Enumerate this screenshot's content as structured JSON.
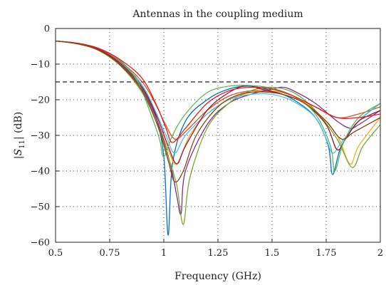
{
  "chart_data": {
    "type": "line",
    "title": "Antennas in the coupling medium",
    "xlabel": "Frequency (GHz)",
    "ylabel_parts": [
      "|",
      "S",
      "11",
      "| (dB)"
    ],
    "xlim": [
      0.5,
      2.0
    ],
    "ylim": [
      -60,
      0
    ],
    "xticks": [
      0.5,
      0.75,
      1.0,
      1.25,
      1.5,
      1.75,
      2.0
    ],
    "xtick_labels": [
      "0.5",
      "0.75",
      "1",
      "1.25",
      "1.5",
      "1.75",
      "2"
    ],
    "yticks": [
      0,
      -10,
      -20,
      -30,
      -40,
      -50,
      -60
    ],
    "ytick_labels": [
      "0",
      "−10",
      "−20",
      "−30",
      "−40",
      "−50",
      "−60"
    ],
    "grid": true,
    "reference_line": {
      "y": -15,
      "style": "dashed",
      "color": "#222222"
    },
    "series": [
      {
        "color": "#0072bd",
        "points": [
          [
            0.5,
            -3.5
          ],
          [
            0.6,
            -4.2
          ],
          [
            0.7,
            -5.8
          ],
          [
            0.8,
            -9.5
          ],
          [
            0.9,
            -16
          ],
          [
            0.96,
            -24
          ],
          [
            1.0,
            -36
          ],
          [
            1.02,
            -58
          ],
          [
            1.04,
            -38
          ],
          [
            1.1,
            -26
          ],
          [
            1.2,
            -20
          ],
          [
            1.3,
            -17
          ],
          [
            1.4,
            -16.2
          ],
          [
            1.5,
            -17.5
          ],
          [
            1.6,
            -20
          ],
          [
            1.7,
            -25
          ],
          [
            1.76,
            -33
          ],
          [
            1.78,
            -41
          ],
          [
            1.82,
            -33
          ],
          [
            1.9,
            -26
          ],
          [
            2.0,
            -21
          ]
        ]
      },
      {
        "color": "#d95319",
        "points": [
          [
            0.5,
            -3.5
          ],
          [
            0.6,
            -4.2
          ],
          [
            0.7,
            -5.8
          ],
          [
            0.8,
            -9.3
          ],
          [
            0.9,
            -15
          ],
          [
            0.96,
            -21
          ],
          [
            1.0,
            -26
          ],
          [
            1.05,
            -31
          ],
          [
            1.1,
            -29
          ],
          [
            1.2,
            -23
          ],
          [
            1.3,
            -19
          ],
          [
            1.4,
            -17.5
          ],
          [
            1.5,
            -17.8
          ],
          [
            1.6,
            -19.5
          ],
          [
            1.7,
            -22
          ],
          [
            1.8,
            -25
          ],
          [
            1.9,
            -24
          ],
          [
            2.0,
            -22
          ]
        ]
      },
      {
        "color": "#edb120",
        "points": [
          [
            0.5,
            -3.5
          ],
          [
            0.6,
            -4.3
          ],
          [
            0.7,
            -6
          ],
          [
            0.8,
            -10
          ],
          [
            0.9,
            -17
          ],
          [
            0.97,
            -26
          ],
          [
            1.02,
            -34
          ],
          [
            1.06,
            -38
          ],
          [
            1.12,
            -30
          ],
          [
            1.2,
            -24
          ],
          [
            1.3,
            -20
          ],
          [
            1.4,
            -18
          ],
          [
            1.5,
            -17.5
          ],
          [
            1.6,
            -19
          ],
          [
            1.7,
            -23
          ],
          [
            1.8,
            -30
          ],
          [
            1.86,
            -38
          ],
          [
            1.9,
            -33
          ],
          [
            2.0,
            -25
          ]
        ]
      },
      {
        "color": "#7e2f8e",
        "points": [
          [
            0.5,
            -3.5
          ],
          [
            0.6,
            -4.3
          ],
          [
            0.7,
            -6
          ],
          [
            0.8,
            -10.2
          ],
          [
            0.9,
            -17
          ],
          [
            0.97,
            -26
          ],
          [
            1.03,
            -38
          ],
          [
            1.06,
            -47
          ],
          [
            1.08,
            -52
          ],
          [
            1.1,
            -40
          ],
          [
            1.2,
            -27
          ],
          [
            1.3,
            -21
          ],
          [
            1.4,
            -18.5
          ],
          [
            1.5,
            -17
          ],
          [
            1.55,
            -16.5
          ],
          [
            1.6,
            -17.5
          ],
          [
            1.7,
            -21
          ],
          [
            1.8,
            -26
          ],
          [
            1.86,
            -28
          ],
          [
            1.9,
            -27
          ],
          [
            2.0,
            -23
          ]
        ]
      },
      {
        "color": "#77ac30",
        "points": [
          [
            0.5,
            -3.5
          ],
          [
            0.6,
            -4.3
          ],
          [
            0.7,
            -6.2
          ],
          [
            0.8,
            -10.5
          ],
          [
            0.9,
            -18
          ],
          [
            0.97,
            -27
          ],
          [
            1.02,
            -36
          ],
          [
            1.06,
            -44
          ],
          [
            1.09,
            -55
          ],
          [
            1.12,
            -42
          ],
          [
            1.2,
            -28
          ],
          [
            1.3,
            -21
          ],
          [
            1.4,
            -17.5
          ],
          [
            1.5,
            -16.5
          ],
          [
            1.6,
            -18
          ],
          [
            1.7,
            -23
          ],
          [
            1.8,
            -31
          ],
          [
            1.87,
            -39
          ],
          [
            1.92,
            -33
          ],
          [
            2.0,
            -27
          ]
        ]
      },
      {
        "color": "#4dbeee",
        "points": [
          [
            0.5,
            -3.5
          ],
          [
            0.6,
            -4.2
          ],
          [
            0.7,
            -5.9
          ],
          [
            0.8,
            -9.6
          ],
          [
            0.9,
            -16
          ],
          [
            0.96,
            -23
          ],
          [
            1.01,
            -30
          ],
          [
            1.05,
            -35
          ],
          [
            1.1,
            -30
          ],
          [
            1.2,
            -24
          ],
          [
            1.3,
            -20
          ],
          [
            1.4,
            -18.5
          ],
          [
            1.5,
            -18.5
          ],
          [
            1.6,
            -20.5
          ],
          [
            1.7,
            -25
          ],
          [
            1.75,
            -31
          ],
          [
            1.78,
            -35
          ],
          [
            1.82,
            -32
          ],
          [
            1.9,
            -26
          ],
          [
            2.0,
            -21
          ]
        ]
      },
      {
        "color": "#a2142f",
        "points": [
          [
            0.5,
            -3.5
          ],
          [
            0.6,
            -4.2
          ],
          [
            0.7,
            -5.9
          ],
          [
            0.8,
            -9.8
          ],
          [
            0.9,
            -16.5
          ],
          [
            0.97,
            -25
          ],
          [
            1.02,
            -33
          ],
          [
            1.06,
            -38
          ],
          [
            1.1,
            -33
          ],
          [
            1.2,
            -23
          ],
          [
            1.3,
            -18
          ],
          [
            1.38,
            -16
          ],
          [
            1.45,
            -17
          ],
          [
            1.55,
            -18.5
          ],
          [
            1.65,
            -21
          ],
          [
            1.75,
            -27
          ],
          [
            1.8,
            -34
          ],
          [
            1.84,
            -31
          ],
          [
            1.9,
            -26
          ],
          [
            2.0,
            -23
          ]
        ]
      },
      {
        "color": "#5cb85c",
        "points": [
          [
            0.5,
            -3.5
          ],
          [
            0.6,
            -4.1
          ],
          [
            0.7,
            -5.6
          ],
          [
            0.8,
            -9
          ],
          [
            0.88,
            -15
          ],
          [
            0.94,
            -24
          ],
          [
            0.98,
            -31
          ],
          [
            1.0,
            -36
          ],
          [
            1.04,
            -30
          ],
          [
            1.1,
            -24
          ],
          [
            1.2,
            -18
          ],
          [
            1.3,
            -16.2
          ],
          [
            1.4,
            -16
          ],
          [
            1.5,
            -16.8
          ],
          [
            1.6,
            -19
          ],
          [
            1.7,
            -24
          ],
          [
            1.77,
            -33
          ],
          [
            1.79,
            -40
          ],
          [
            1.83,
            -32
          ],
          [
            1.9,
            -25
          ],
          [
            2.0,
            -21
          ]
        ]
      },
      {
        "color": "#e41a1c",
        "points": [
          [
            0.5,
            -3.5
          ],
          [
            0.6,
            -4.1
          ],
          [
            0.7,
            -5.6
          ],
          [
            0.8,
            -8.8
          ],
          [
            0.9,
            -14
          ],
          [
            0.97,
            -22
          ],
          [
            1.01,
            -28
          ],
          [
            1.04,
            -32
          ],
          [
            1.1,
            -28
          ],
          [
            1.2,
            -21
          ],
          [
            1.3,
            -17.5
          ],
          [
            1.4,
            -16.5
          ],
          [
            1.5,
            -17
          ],
          [
            1.6,
            -19
          ],
          [
            1.7,
            -22
          ],
          [
            1.8,
            -25
          ],
          [
            1.9,
            -25
          ],
          [
            2.0,
            -24
          ]
        ]
      },
      {
        "color": "#8b4513",
        "points": [
          [
            0.5,
            -3.5
          ],
          [
            0.6,
            -4.3
          ],
          [
            0.7,
            -6.1
          ],
          [
            0.8,
            -10.3
          ],
          [
            0.9,
            -17.5
          ],
          [
            0.97,
            -27
          ],
          [
            1.02,
            -37
          ],
          [
            1.05,
            -43
          ],
          [
            1.09,
            -40
          ],
          [
            1.15,
            -30
          ],
          [
            1.25,
            -22
          ],
          [
            1.35,
            -18.5
          ],
          [
            1.45,
            -17.8
          ],
          [
            1.55,
            -18.5
          ],
          [
            1.65,
            -21
          ],
          [
            1.75,
            -26
          ],
          [
            1.82,
            -31
          ],
          [
            1.88,
            -29
          ],
          [
            2.0,
            -25
          ]
        ]
      }
    ]
  }
}
